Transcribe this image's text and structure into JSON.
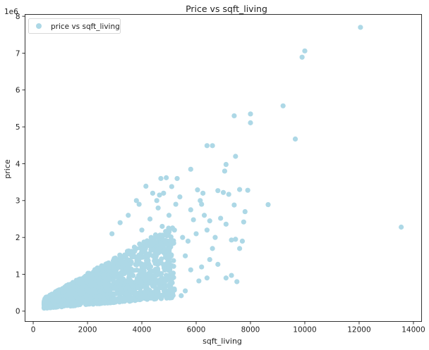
{
  "chart_data": {
    "type": "scatter",
    "title": "Price vs sqft_living",
    "xlabel": "sqft_living",
    "ylabel": "price",
    "y_offset_label": "1e6",
    "xlim": [
      -300,
      14300
    ],
    "ylim": [
      -0.28,
      8.05
    ],
    "x_ticks": [
      0,
      2000,
      4000,
      6000,
      8000,
      10000,
      12000,
      14000
    ],
    "x_tick_labels": [
      "0",
      "2000",
      "4000",
      "6000",
      "8000",
      "10000",
      "12000",
      "14000"
    ],
    "y_ticks": [
      0,
      1,
      2,
      3,
      4,
      5,
      6,
      7,
      8
    ],
    "y_tick_labels": [
      "0",
      "1",
      "2",
      "3",
      "4",
      "5",
      "6",
      "7",
      "8"
    ],
    "grid": false,
    "legend_position": "upper-left",
    "marker_color": "#add8e6",
    "series": [
      {
        "name": "price vs sqft_living",
        "points": [
          [
            12050,
            7.7
          ],
          [
            10000,
            7.06
          ],
          [
            9900,
            6.89
          ],
          [
            9200,
            5.57
          ],
          [
            8000,
            5.35
          ],
          [
            7400,
            5.3
          ],
          [
            8000,
            5.11
          ],
          [
            9650,
            4.67
          ],
          [
            6400,
            4.49
          ],
          [
            6600,
            4.49
          ],
          [
            7450,
            4.2
          ],
          [
            7100,
            3.98
          ],
          [
            7050,
            3.8
          ],
          [
            5800,
            3.85
          ],
          [
            13550,
            2.28
          ],
          [
            8650,
            2.89
          ],
          [
            6050,
            3.29
          ],
          [
            7900,
            3.28
          ],
          [
            7600,
            3.3
          ],
          [
            7200,
            3.17
          ],
          [
            6800,
            3.27
          ],
          [
            7000,
            3.22
          ],
          [
            7400,
            2.88
          ],
          [
            7800,
            2.7
          ],
          [
            7750,
            2.42
          ],
          [
            7100,
            2.36
          ],
          [
            6900,
            2.52
          ],
          [
            7450,
            1.95
          ],
          [
            7300,
            1.93
          ],
          [
            7700,
            1.9
          ],
          [
            7600,
            1.7
          ],
          [
            7300,
            0.97
          ],
          [
            7100,
            0.9
          ],
          [
            7500,
            0.8
          ],
          [
            6500,
            1.4
          ],
          [
            6600,
            1.7
          ],
          [
            6800,
            1.27
          ],
          [
            6200,
            1.2
          ],
          [
            6400,
            0.9
          ],
          [
            6100,
            0.82
          ],
          [
            5800,
            1.12
          ],
          [
            5600,
            1.5
          ],
          [
            5700,
            1.9
          ],
          [
            5900,
            2.48
          ],
          [
            6300,
            2.6
          ],
          [
            6200,
            2.9
          ],
          [
            5300,
            3.6
          ],
          [
            5100,
            3.38
          ],
          [
            4900,
            3.62
          ],
          [
            4700,
            3.6
          ],
          [
            4650,
            3.15
          ],
          [
            4550,
            3.0
          ],
          [
            4150,
            3.39
          ],
          [
            4400,
            3.2
          ],
          [
            6400,
            2.2
          ],
          [
            6700,
            2.0
          ],
          [
            6000,
            2.1
          ],
          [
            5450,
            0.42
          ],
          [
            5600,
            0.55
          ],
          [
            6150,
            3.0
          ],
          [
            4800,
            3.2
          ],
          [
            5000,
            2.6
          ],
          [
            3900,
            2.9
          ],
          [
            4300,
            2.5
          ],
          [
            3500,
            2.6
          ],
          [
            3200,
            2.4
          ],
          [
            5200,
            2.2
          ],
          [
            5500,
            2.0
          ],
          [
            4750,
            2.3
          ],
          [
            4000,
            2.2
          ],
          [
            2900,
            2.1
          ],
          [
            5250,
            2.9
          ],
          [
            3800,
            3.0
          ],
          [
            4600,
            2.8
          ],
          [
            5400,
            3.1
          ],
          [
            6250,
            3.2
          ],
          [
            5800,
            2.75
          ],
          [
            6500,
            2.45
          ]
        ]
      }
    ],
    "cloud": {
      "description_free_generation": true,
      "dense_region": {
        "x_min": 400,
        "x_max": 5200,
        "y_bottom_at_x_min": 0.08,
        "y_bottom_slope_per_1000": 0.06,
        "y_top_at_x_min": 0.35,
        "y_top_slope_per_1000": 0.42
      },
      "sample_count": 1600
    }
  }
}
